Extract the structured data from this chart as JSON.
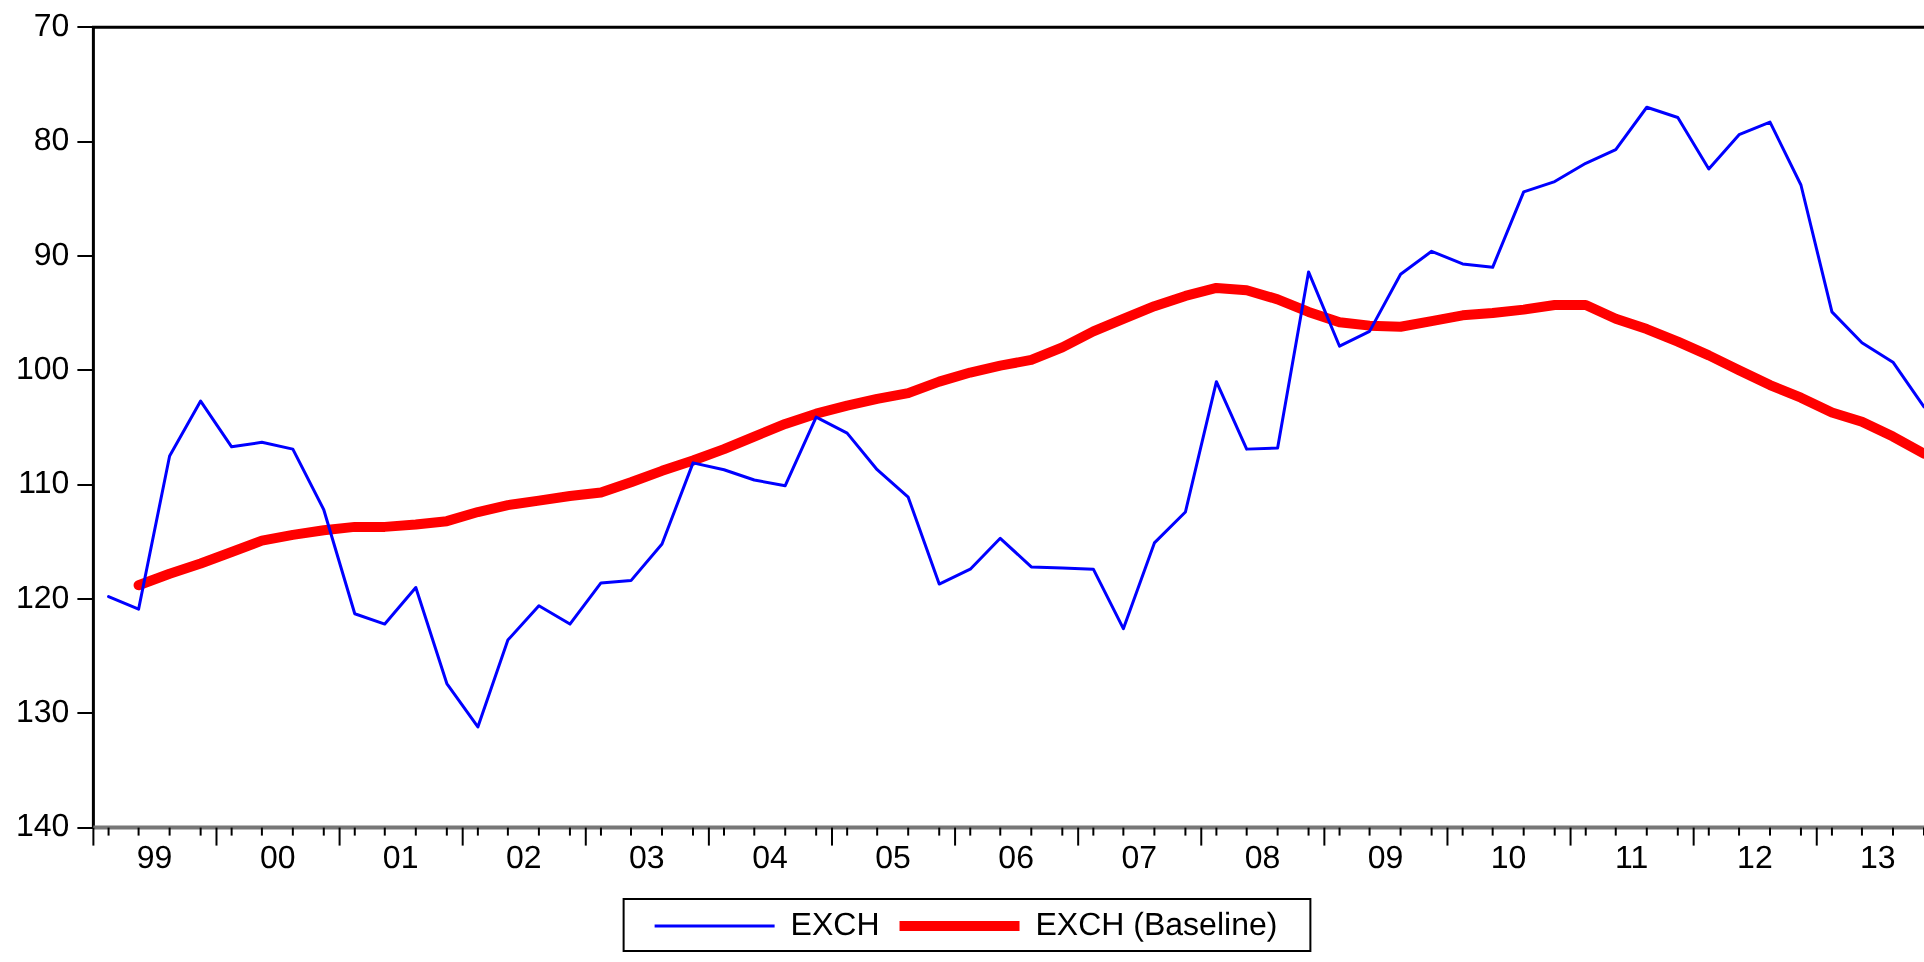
{
  "chart_data": {
    "type": "line",
    "x": [
      "1999-02-15",
      "1999-05-15",
      "1999-08-15",
      "1999-11-15",
      "2000-02-15",
      "2000-05-15",
      "2000-08-15",
      "2000-11-15",
      "2001-02-15",
      "2001-05-15",
      "2001-08-15",
      "2001-11-15",
      "2002-02-15",
      "2002-05-15",
      "2002-08-15",
      "2002-11-15",
      "2003-02-15",
      "2003-05-15",
      "2003-08-15",
      "2003-11-15",
      "2004-02-15",
      "2004-05-15",
      "2004-08-15",
      "2004-11-15",
      "2005-02-15",
      "2005-05-15",
      "2005-08-15",
      "2005-11-15",
      "2006-02-15",
      "2006-05-15",
      "2006-08-15",
      "2006-11-15",
      "2007-02-15",
      "2007-05-15",
      "2007-08-15",
      "2007-11-15",
      "2008-02-15",
      "2008-05-15",
      "2008-08-15",
      "2008-11-15",
      "2009-02-15",
      "2009-05-15",
      "2009-08-15",
      "2009-11-15",
      "2010-02-15",
      "2010-05-15",
      "2010-08-15",
      "2010-11-15",
      "2011-02-15",
      "2011-05-15",
      "2011-08-15",
      "2011-11-15",
      "2012-02-15",
      "2012-05-15",
      "2012-08-15",
      "2012-11-15",
      "2013-02-15",
      "2013-05-15",
      "2013-08-15",
      "2013-11-15"
    ],
    "xlim": [
      "1999-01-01",
      "2013-11-15"
    ],
    "xticks": [
      {
        "value": "1999-01-01",
        "label": null
      },
      {
        "value": "1999-07-01",
        "label": "99"
      },
      {
        "value": "2000-01-01",
        "label": null
      },
      {
        "value": "2000-07-01",
        "label": "00"
      },
      {
        "value": "2001-01-01",
        "label": null
      },
      {
        "value": "2001-07-01",
        "label": "01"
      },
      {
        "value": "2002-01-01",
        "label": null
      },
      {
        "value": "2002-07-01",
        "label": "02"
      },
      {
        "value": "2003-01-01",
        "label": null
      },
      {
        "value": "2003-07-01",
        "label": "03"
      },
      {
        "value": "2004-01-01",
        "label": null
      },
      {
        "value": "2004-07-01",
        "label": "04"
      },
      {
        "value": "2005-01-01",
        "label": null
      },
      {
        "value": "2005-07-01",
        "label": "05"
      },
      {
        "value": "2006-01-01",
        "label": null
      },
      {
        "value": "2006-07-01",
        "label": "06"
      },
      {
        "value": "2007-01-01",
        "label": null
      },
      {
        "value": "2007-07-01",
        "label": "07"
      },
      {
        "value": "2008-01-01",
        "label": null
      },
      {
        "value": "2008-07-01",
        "label": "08"
      },
      {
        "value": "2009-01-01",
        "label": null
      },
      {
        "value": "2009-07-01",
        "label": "09"
      },
      {
        "value": "2010-01-01",
        "label": null
      },
      {
        "value": "2010-07-01",
        "label": "10"
      },
      {
        "value": "2011-01-01",
        "label": null
      },
      {
        "value": "2011-07-01",
        "label": "11"
      },
      {
        "value": "2012-01-01",
        "label": null
      },
      {
        "value": "2012-07-01",
        "label": "12"
      },
      {
        "value": "2013-01-01",
        "label": null
      },
      {
        "value": "2013-07-01",
        "label": "13"
      }
    ],
    "series": [
      {
        "name": "EXCH",
        "color": "#0000ff",
        "values": [
          119.8,
          120.9,
          107.5,
          102.7,
          106.7,
          106.3,
          106.9,
          112.2,
          121.3,
          122.2,
          119.0,
          127.4,
          131.2,
          123.6,
          120.6,
          122.2,
          118.6,
          118.4,
          115.2,
          108.1,
          108.7,
          109.6,
          110.1,
          104.1,
          105.5,
          108.7,
          111.1,
          118.7,
          117.4,
          114.7,
          117.2,
          117.3,
          117.4,
          122.6,
          115.1,
          112.4,
          101.0,
          106.9,
          106.8,
          91.4,
          97.9,
          96.6,
          91.6,
          89.6,
          90.7,
          91.0,
          84.4,
          83.5,
          81.9,
          80.7,
          77.0,
          77.9,
          82.4,
          79.4,
          78.3,
          83.8,
          94.9,
          97.6,
          99.3,
          103.2
        ]
      },
      {
        "name": "EXCH (Baseline)",
        "color": "#ff0000",
        "values": [
          null,
          118.8,
          117.8,
          116.9,
          115.9,
          114.9,
          114.4,
          114.0,
          113.7,
          113.7,
          113.5,
          113.2,
          112.4,
          111.8,
          111.4,
          111.0,
          110.7,
          109.8,
          108.8,
          107.9,
          106.9,
          105.8,
          104.7,
          103.8,
          103.1,
          102.5,
          102.0,
          101.0,
          100.2,
          99.6,
          99.1,
          98.0,
          96.6,
          95.5,
          94.4,
          93.5,
          92.8,
          93.0,
          93.8,
          94.9,
          95.8,
          96.1,
          96.2,
          95.7,
          95.2,
          95.0,
          94.7,
          94.3,
          94.3,
          95.5,
          96.4,
          97.5,
          98.7,
          100.0,
          101.3,
          102.4,
          103.7,
          104.5,
          105.8,
          107.3
        ]
      }
    ],
    "ylim": [
      140,
      70
    ],
    "yticks": [
      70,
      80,
      90,
      100,
      110,
      120,
      130,
      140
    ],
    "grid": false,
    "legend": "bottom",
    "marker": "none",
    "line_style": "solid"
  }
}
